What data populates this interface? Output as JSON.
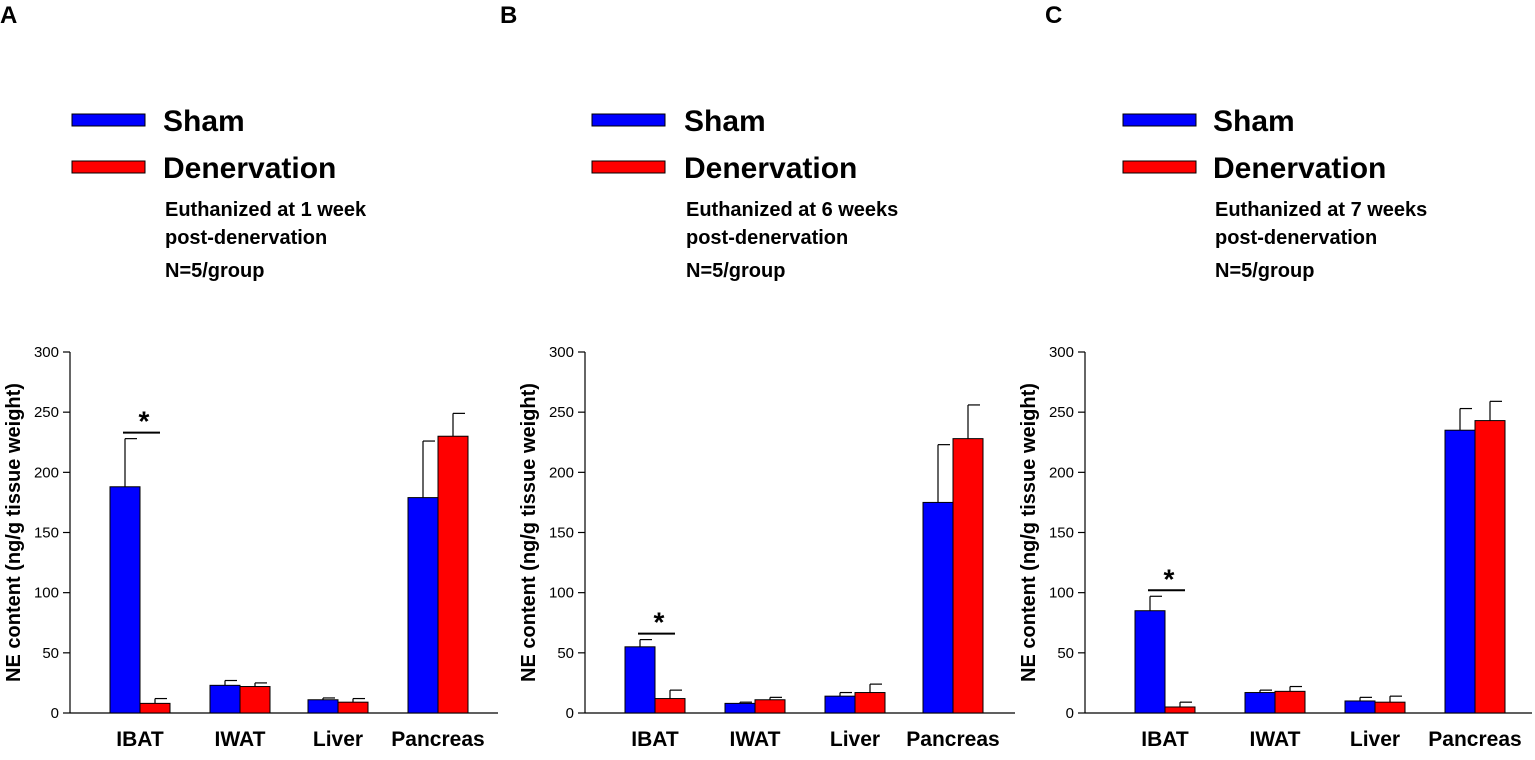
{
  "colors": {
    "sham": "#0000ff",
    "denervation": "#ff0000",
    "axis": "#000000"
  },
  "chart_data": [
    {
      "panel": "A",
      "type": "bar",
      "legend": [
        "Sham",
        "Denervation"
      ],
      "note_lines": [
        "Euthanized at 1 week",
        "post-denervation"
      ],
      "n_label": "N=5/group",
      "ylabel": "NE content (ng/g tissue weight)",
      "ylim": [
        0,
        300
      ],
      "yticks": [
        "0",
        "50",
        "100",
        "150",
        "200",
        "250",
        "300"
      ],
      "categories": [
        "IBAT",
        "IWAT",
        "Liver",
        "Pancreas"
      ],
      "series": [
        {
          "name": "Sham",
          "values": [
            188,
            23,
            11,
            179
          ],
          "errors": [
            40,
            4,
            1.5,
            47
          ]
        },
        {
          "name": "Denervation",
          "values": [
            8,
            22,
            9,
            230
          ],
          "errors": [
            4,
            3,
            3,
            19
          ]
        }
      ],
      "significance": {
        "category": "IBAT",
        "label": "*"
      }
    },
    {
      "panel": "B",
      "type": "bar",
      "legend": [
        "Sham",
        "Denervation"
      ],
      "note_lines": [
        "Euthanized at 6 weeks",
        "post-denervation"
      ],
      "n_label": "N=5/group",
      "ylabel": "NE content (ng/g tissue weight)",
      "ylim": [
        0,
        300
      ],
      "yticks": [
        "0",
        "50",
        "100",
        "150",
        "200",
        "250",
        "300"
      ],
      "categories": [
        "IBAT",
        "IWAT",
        "Liver",
        "Pancreas"
      ],
      "series": [
        {
          "name": "Sham",
          "values": [
            55,
            8,
            14,
            175
          ],
          "errors": [
            6,
            1,
            3,
            48
          ]
        },
        {
          "name": "Denervation",
          "values": [
            12,
            11,
            17,
            228
          ],
          "errors": [
            7,
            2,
            7,
            28
          ]
        }
      ],
      "significance": {
        "category": "IBAT",
        "label": "*"
      }
    },
    {
      "panel": "C",
      "type": "bar",
      "legend": [
        "Sham",
        "Denervation"
      ],
      "note_lines": [
        "Euthanized at 7 weeks",
        "post-denervation"
      ],
      "n_label": "N=5/group",
      "ylabel": "NE content (ng/g tissue weight)",
      "ylim": [
        0,
        300
      ],
      "yticks": [
        "0",
        "50",
        "100",
        "150",
        "200",
        "250",
        "300"
      ],
      "categories": [
        "IBAT",
        "IWAT",
        "Liver",
        "Pancreas"
      ],
      "series": [
        {
          "name": "Sham",
          "values": [
            85,
            17,
            10,
            235
          ],
          "errors": [
            12,
            2,
            3,
            18
          ]
        },
        {
          "name": "Denervation",
          "values": [
            5,
            18,
            9,
            243
          ],
          "errors": [
            4,
            4,
            5,
            16
          ]
        }
      ],
      "significance": {
        "category": "IBAT",
        "label": "*"
      }
    }
  ]
}
